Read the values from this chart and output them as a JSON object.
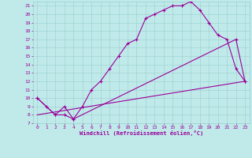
{
  "xlabel": "Windchill (Refroidissement éolien,°C)",
  "xlim": [
    -0.5,
    23.5
  ],
  "ylim": [
    7,
    21.5
  ],
  "xticks": [
    0,
    1,
    2,
    3,
    4,
    5,
    6,
    7,
    8,
    9,
    10,
    11,
    12,
    13,
    14,
    15,
    16,
    17,
    18,
    19,
    20,
    21,
    22,
    23
  ],
  "yticks": [
    7,
    8,
    9,
    10,
    11,
    12,
    13,
    14,
    15,
    16,
    17,
    18,
    19,
    20,
    21
  ],
  "background_color": "#c0eaea",
  "grid_color": "#99cccc",
  "line_color": "#990099",
  "curve1_x": [
    0,
    1,
    2,
    3,
    4,
    5,
    6,
    7,
    8,
    9,
    10,
    11,
    12,
    13,
    14,
    15,
    16,
    17,
    18,
    19,
    20,
    21,
    22,
    23
  ],
  "curve1_y": [
    10,
    9,
    8,
    8,
    7.5,
    9,
    11,
    12,
    13.5,
    15,
    16.5,
    17,
    19.5,
    20,
    20.5,
    21,
    21,
    21.5,
    20.5,
    19,
    17.5,
    17,
    13.5,
    12
  ],
  "curve2_x": [
    0,
    2,
    3,
    4,
    22,
    23
  ],
  "curve2_y": [
    10,
    8,
    9,
    7.5,
    17,
    12
  ],
  "curve3_x": [
    0,
    23
  ],
  "curve3_y": [
    8,
    12
  ],
  "tick_fontsize": 4.5,
  "xlabel_fontsize": 5.0
}
